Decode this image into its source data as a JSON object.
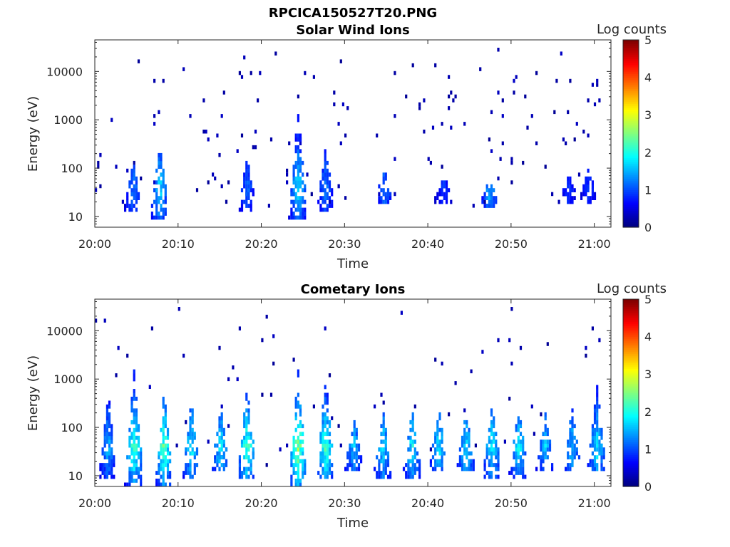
{
  "figure": {
    "title": "RPCICA150527T20.PNG"
  },
  "chart_data": [
    {
      "type": "heatmap",
      "title": "Solar Wind Ions",
      "xlabel": "Time",
      "ylabel": "Energy (eV)",
      "x_ticks": [
        "20:00",
        "20:10",
        "20:20",
        "20:30",
        "20:40",
        "20:50",
        "21:00"
      ],
      "y_ticks": [
        "10",
        "100",
        "1000",
        "10000"
      ],
      "y_scale": "log",
      "y_range": [
        6,
        45000
      ],
      "x_range_minutes": [
        0,
        62
      ],
      "colorbar": {
        "label": "Log counts",
        "ticks": [
          "0",
          "1",
          "2",
          "3",
          "4",
          "5"
        ],
        "range": [
          0,
          5
        ],
        "colormap": "jet"
      },
      "bursts": [
        {
          "t": 4.5,
          "log_counts": 1.4,
          "e_low": 15,
          "e_high": 150
        },
        {
          "t": 7.7,
          "log_counts": 1.9,
          "e_low": 12,
          "e_high": 300
        },
        {
          "t": 18.2,
          "log_counts": 1.3,
          "e_low": 15,
          "e_high": 200
        },
        {
          "t": 24.3,
          "log_counts": 2.0,
          "e_low": 12,
          "e_high": 1600
        },
        {
          "t": 27.6,
          "log_counts": 1.4,
          "e_low": 15,
          "e_high": 300
        },
        {
          "t": 34.7,
          "log_counts": 1.4,
          "e_low": 25,
          "e_high": 100
        },
        {
          "t": 41.8,
          "log_counts": 1.0,
          "e_low": 25,
          "e_high": 70
        },
        {
          "t": 47.3,
          "log_counts": 1.7,
          "e_low": 20,
          "e_high": 60
        },
        {
          "t": 56.8,
          "log_counts": 1.0,
          "e_low": 25,
          "e_high": 80
        },
        {
          "t": 59.2,
          "log_counts": 1.0,
          "e_low": 25,
          "e_high": 100
        }
      ]
    },
    {
      "type": "heatmap",
      "title": "Cometary Ions",
      "xlabel": "Time",
      "ylabel": "Energy (eV)",
      "x_ticks": [
        "20:00",
        "20:10",
        "20:20",
        "20:30",
        "20:40",
        "20:50",
        "21:00"
      ],
      "y_ticks": [
        "10",
        "100",
        "1000",
        "10000"
      ],
      "y_scale": "log",
      "y_range": [
        6,
        45000
      ],
      "x_range_minutes": [
        0,
        62
      ],
      "colorbar": {
        "label": "Log counts",
        "ticks": [
          "0",
          "1",
          "2",
          "3",
          "4",
          "5"
        ],
        "range": [
          0,
          5
        ],
        "colormap": "jet"
      },
      "bursts": [
        {
          "t": 1.5,
          "log_counts": 1.7,
          "e_low": 10,
          "e_high": 500
        },
        {
          "t": 4.6,
          "log_counts": 2.5,
          "e_low": 8,
          "e_high": 1600
        },
        {
          "t": 8.2,
          "log_counts": 2.6,
          "e_low": 8,
          "e_high": 600
        },
        {
          "t": 11.5,
          "log_counts": 2.1,
          "e_low": 10,
          "e_high": 400
        },
        {
          "t": 15.0,
          "log_counts": 2.0,
          "e_low": 15,
          "e_high": 300
        },
        {
          "t": 18.2,
          "log_counts": 2.5,
          "e_low": 12,
          "e_high": 800
        },
        {
          "t": 24.3,
          "log_counts": 2.9,
          "e_low": 8,
          "e_high": 1500
        },
        {
          "t": 27.6,
          "log_counts": 2.5,
          "e_low": 10,
          "e_high": 1200
        },
        {
          "t": 31.0,
          "log_counts": 1.8,
          "e_low": 15,
          "e_high": 200
        },
        {
          "t": 34.5,
          "log_counts": 2.0,
          "e_low": 12,
          "e_high": 250
        },
        {
          "t": 38.0,
          "log_counts": 2.1,
          "e_low": 12,
          "e_high": 250
        },
        {
          "t": 41.2,
          "log_counts": 2.0,
          "e_low": 15,
          "e_high": 250
        },
        {
          "t": 44.5,
          "log_counts": 2.0,
          "e_low": 15,
          "e_high": 250
        },
        {
          "t": 47.6,
          "log_counts": 2.1,
          "e_low": 12,
          "e_high": 300
        },
        {
          "t": 50.8,
          "log_counts": 2.1,
          "e_low": 12,
          "e_high": 250
        },
        {
          "t": 54.0,
          "log_counts": 1.8,
          "e_low": 15,
          "e_high": 200
        },
        {
          "t": 57.2,
          "log_counts": 1.8,
          "e_low": 15,
          "e_high": 250
        },
        {
          "t": 60.2,
          "log_counts": 2.0,
          "e_low": 15,
          "e_high": 800
        }
      ]
    }
  ]
}
